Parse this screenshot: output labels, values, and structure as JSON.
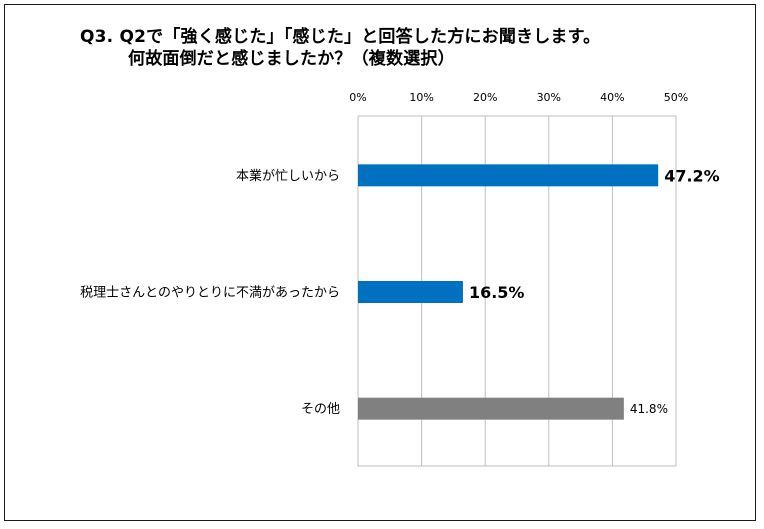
{
  "title": {
    "line1": "Q3.  Q2で「強く感じた」「感じた」と回答した方にお聞きします。",
    "line2": "何故面倒だと感じましたか？（複数選択）"
  },
  "colors": {
    "primary_bar": "#0070C0",
    "other_bar": "#808080",
    "grid": "#BFBFBF"
  },
  "chart_data": {
    "type": "bar",
    "orientation": "horizontal",
    "categories": [
      "本業が忙しいから",
      "税理士さんとのやりとりに不満があったから",
      "その他"
    ],
    "values": [
      47.2,
      16.5,
      41.8
    ],
    "value_labels": [
      "47.2%",
      "16.5%",
      "41.8%"
    ],
    "bar_colors": [
      "#0070C0",
      "#0070C0",
      "#808080"
    ],
    "label_emphasis": [
      "bold",
      "bold",
      "normal"
    ],
    "xlim": [
      0,
      50
    ],
    "ticks": [
      0,
      10,
      20,
      30,
      40,
      50
    ],
    "tick_labels": [
      "0%",
      "10%",
      "20%",
      "30%",
      "40%",
      "50%"
    ],
    "grid": true,
    "tick_position": "top"
  }
}
